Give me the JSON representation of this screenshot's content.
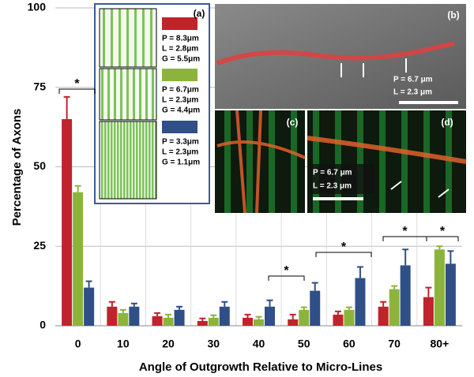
{
  "chart_data": {
    "type": "bar",
    "ylabel": "Percentage of Axons",
    "xlabel": "Angle of Outgrowth Relative to Micro-Lines",
    "categories": [
      "0",
      "10",
      "20",
      "30",
      "40",
      "50",
      "60",
      "70",
      "80+"
    ],
    "series": [
      {
        "color": "#c0232c",
        "values": [
          65,
          6,
          3,
          1.5,
          2.5,
          2,
          3.5,
          6,
          9
        ],
        "errors": [
          7,
          1.5,
          1,
          0.8,
          1,
          1.5,
          1,
          1.5,
          3
        ]
      },
      {
        "color": "#8cb43c",
        "values": [
          42,
          4,
          2.5,
          2.5,
          2,
          5,
          5,
          11.5,
          24
        ],
        "errors": [
          2,
          1,
          1,
          0.8,
          0.8,
          0.8,
          0.8,
          1,
          1
        ]
      },
      {
        "color": "#2f4f86",
        "values": [
          12,
          6,
          5,
          6,
          6,
          11,
          15,
          19,
          19.5
        ],
        "errors": [
          2,
          1,
          1,
          1.5,
          2,
          2.5,
          3.5,
          5,
          4
        ]
      }
    ],
    "ylim": [
      0,
      100
    ],
    "yticks": [
      0,
      25,
      50,
      75,
      100
    ],
    "grid": true,
    "annotations": [
      {
        "text": "*"
      },
      {
        "text": "*"
      },
      {
        "text": "*"
      },
      {
        "text": "*"
      },
      {
        "text": "*"
      }
    ],
    "insets": {
      "a": {
        "label": "(a)",
        "legend": [
          [
            "P = 8.3μm",
            "L = 2.8μm",
            "G = 5.5μm"
          ],
          [
            "P = 6.7μm",
            "L = 2.3μm",
            "G = 4.4μm"
          ],
          [
            "P = 3.3μm",
            "L = 2.3μm",
            "G = 1.1μm"
          ]
        ]
      },
      "b": {
        "label": "(b)",
        "lines": [
          "P = 6.7 μm",
          "L = 2.3 μm"
        ]
      },
      "c": {
        "label": "(c)"
      },
      "d": {
        "label": "(d)",
        "lines": [
          "P = 6.7 μm",
          "L = 2.3 μm"
        ]
      }
    }
  }
}
